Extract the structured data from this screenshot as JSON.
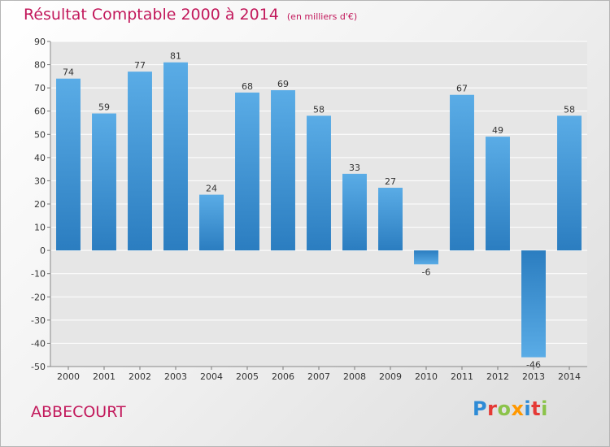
{
  "header": {
    "title": "Résultat Comptable 2000 à 2014",
    "subtitle": "(en milliers d'€)"
  },
  "footer": {
    "commune": "ABBECOURT",
    "logo_letters": [
      {
        "ch": "P",
        "color": "#2e8bd6"
      },
      {
        "ch": "r",
        "color": "#e53935"
      },
      {
        "ch": "o",
        "color": "#8bc34a"
      },
      {
        "ch": "x",
        "color": "#ff9800"
      },
      {
        "ch": "i",
        "color": "#2e8bd6"
      },
      {
        "ch": "t",
        "color": "#e53935"
      },
      {
        "ch": "i",
        "color": "#8bc34a"
      }
    ]
  },
  "colors": {
    "bar_light": "#5aace6",
    "bar_dark": "#2b7dc0",
    "title": "#c2185b",
    "grid": "#ffffff",
    "plot_bg": "#e6e6e6"
  },
  "chart_data": {
    "type": "bar",
    "categories": [
      "2000",
      "2001",
      "2002",
      "2003",
      "2004",
      "2005",
      "2006",
      "2007",
      "2008",
      "2009",
      "2010",
      "2011",
      "2012",
      "2013",
      "2014"
    ],
    "values": [
      74,
      59,
      77,
      81,
      24,
      68,
      69,
      58,
      33,
      27,
      -6,
      67,
      49,
      -46,
      58
    ],
    "ylim": [
      -50,
      90
    ],
    "yticks": [
      -50,
      -40,
      -30,
      -20,
      -10,
      0,
      10,
      20,
      30,
      40,
      50,
      60,
      70,
      80,
      90
    ],
    "grid": true
  }
}
